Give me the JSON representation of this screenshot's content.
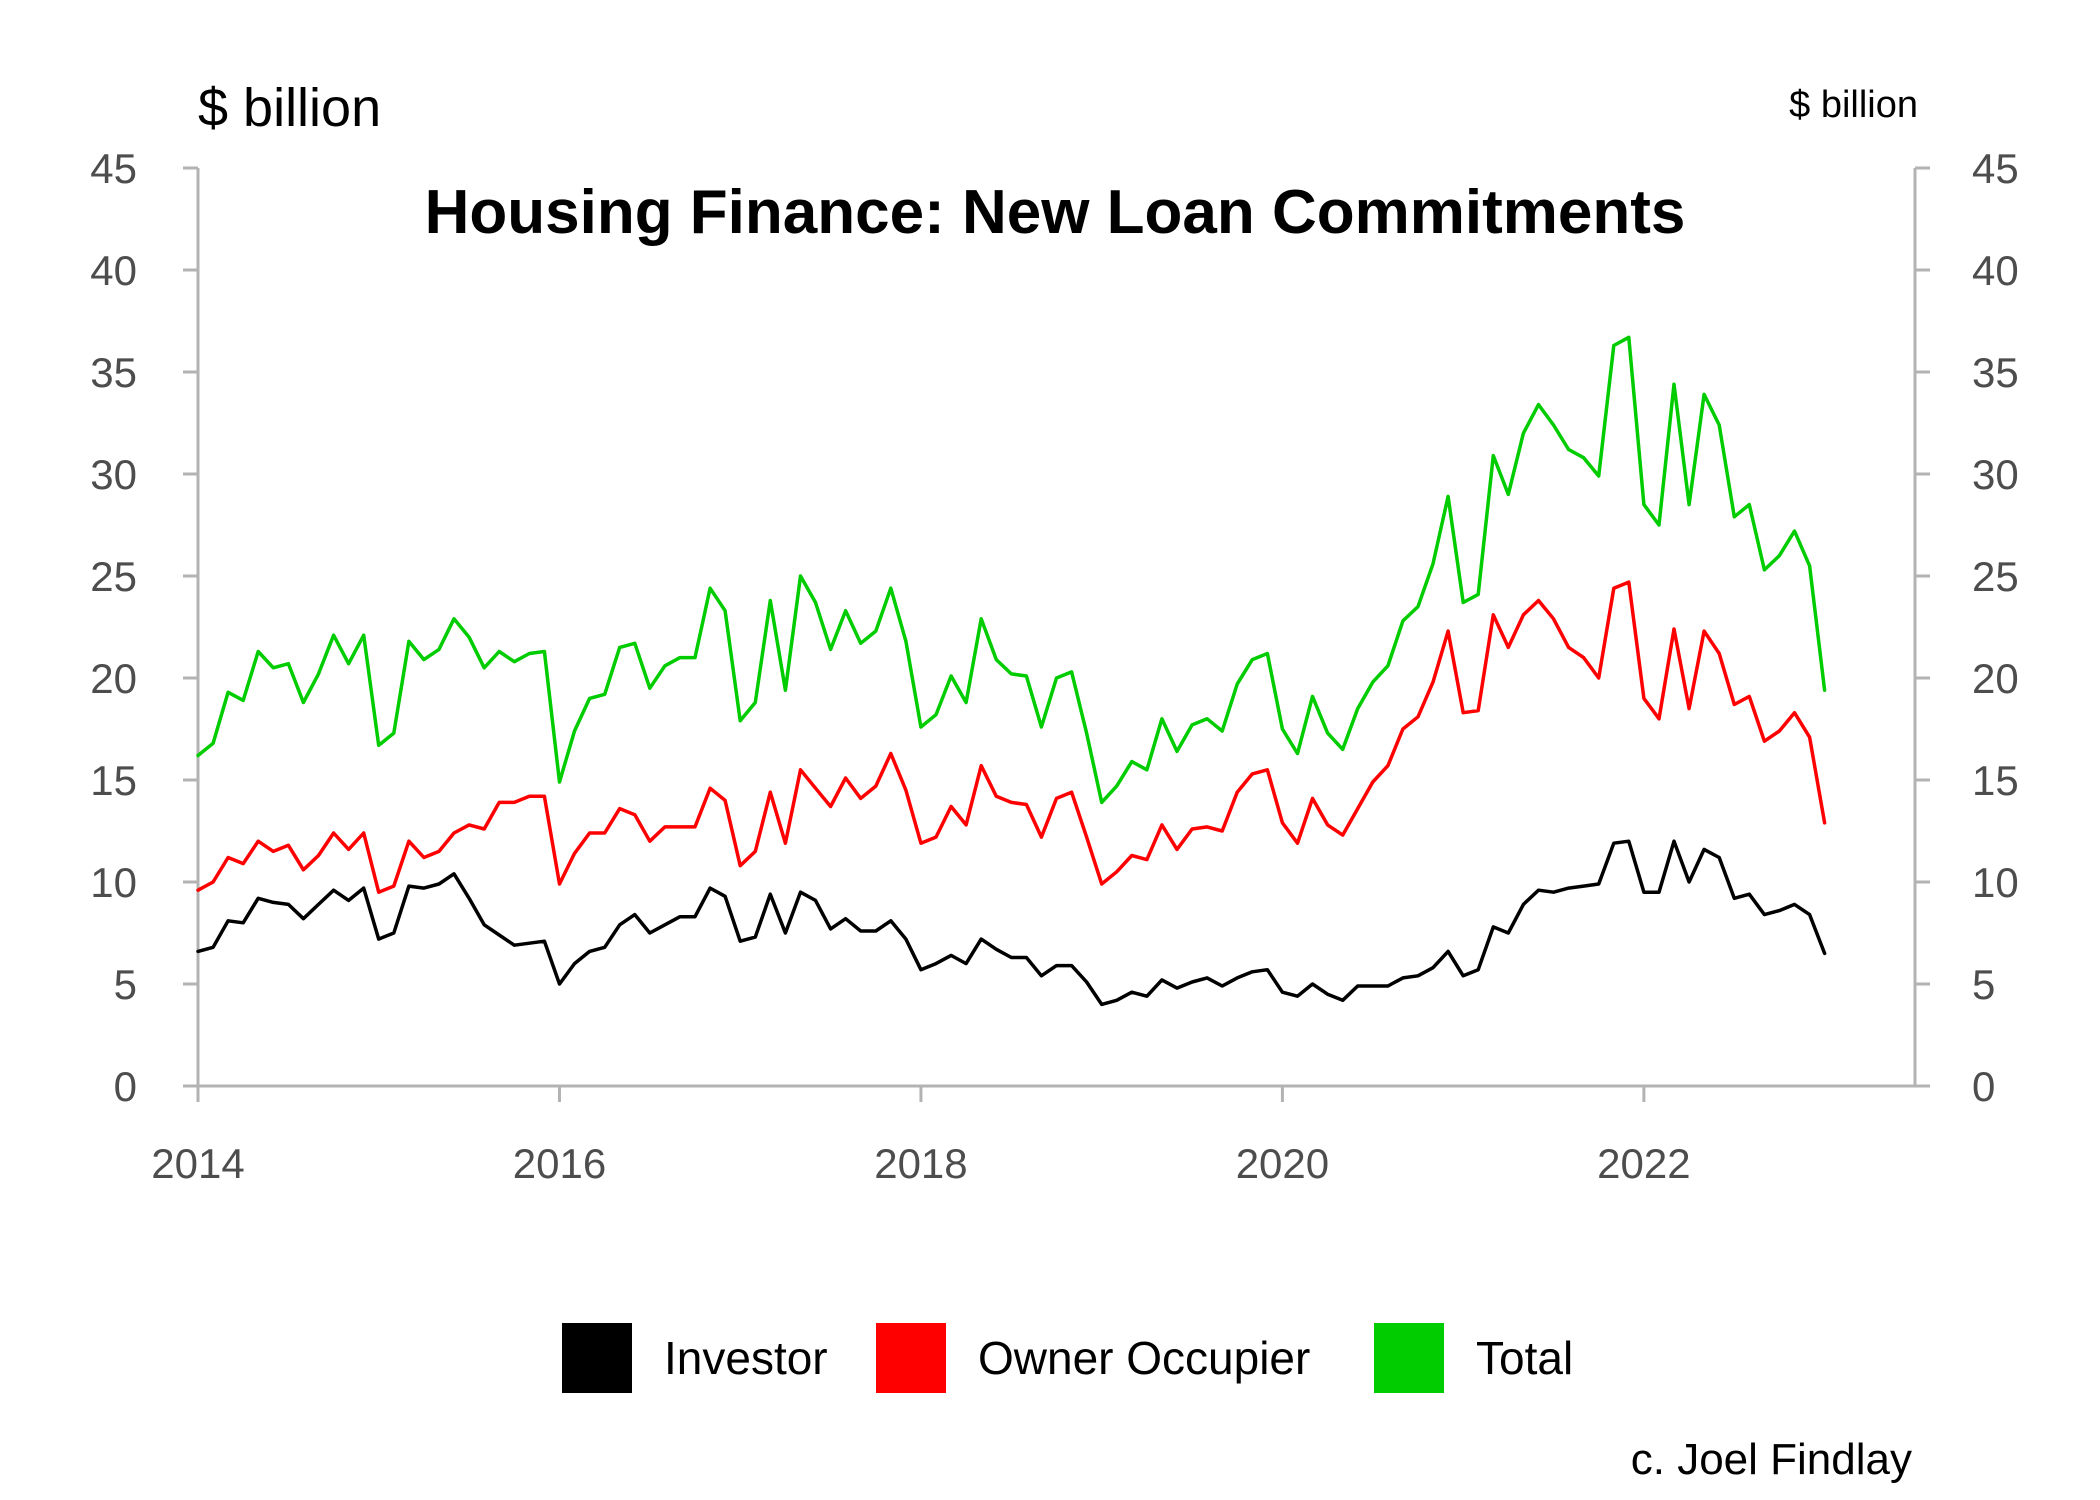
{
  "chart_data": {
    "type": "line",
    "title": "Housing Finance: New Loan Commitments",
    "y_unit_left": "$ billion",
    "y_unit_right": "$ billion",
    "ylim": [
      0,
      45
    ],
    "y_ticks": [
      "0",
      "5",
      "10",
      "15",
      "20",
      "25",
      "30",
      "35",
      "40",
      "45"
    ],
    "xlim": [
      2014.0,
      2023.5
    ],
    "x_ticks": [
      "2014",
      "2016",
      "2018",
      "2020",
      "2022"
    ],
    "x_start": 2014.0,
    "x_step_months": 1,
    "grid": false,
    "legend_position": "bottom-center",
    "credit": "c. Joel Findlay",
    "series": [
      {
        "name": "Investor",
        "color": "#000000",
        "values": [
          6.6,
          6.8,
          8.1,
          8.0,
          9.2,
          9.0,
          8.9,
          8.2,
          8.9,
          9.6,
          9.1,
          9.7,
          7.2,
          7.5,
          9.8,
          9.7,
          9.9,
          10.4,
          9.2,
          7.9,
          7.4,
          6.9,
          7.0,
          7.1,
          5.0,
          6.0,
          6.6,
          6.8,
          7.9,
          8.4,
          7.5,
          7.9,
          8.3,
          8.3,
          9.7,
          9.3,
          7.1,
          7.3,
          9.4,
          7.5,
          9.5,
          9.1,
          7.7,
          8.2,
          7.6,
          7.6,
          8.1,
          7.2,
          5.7,
          6.0,
          6.4,
          6.0,
          7.2,
          6.7,
          6.3,
          6.3,
          5.4,
          5.9,
          5.9,
          5.1,
          4.0,
          4.2,
          4.6,
          4.4,
          5.2,
          4.8,
          5.1,
          5.3,
          4.9,
          5.3,
          5.6,
          5.7,
          4.6,
          4.4,
          5.0,
          4.5,
          4.2,
          4.9,
          4.9,
          4.9,
          5.3,
          5.4,
          5.8,
          6.6,
          5.4,
          5.7,
          7.8,
          7.5,
          8.9,
          9.6,
          9.5,
          9.7,
          9.8,
          9.9,
          11.9,
          12.0,
          9.5,
          9.5,
          12.0,
          10.0,
          11.6,
          11.2,
          9.2,
          9.4,
          8.4,
          8.6,
          8.9,
          8.4,
          6.5
        ]
      },
      {
        "name": "Owner Occupier",
        "color": "#ff0000",
        "values": [
          9.6,
          10.0,
          11.2,
          10.9,
          12.0,
          11.5,
          11.8,
          10.6,
          11.3,
          12.4,
          11.6,
          12.4,
          9.5,
          9.8,
          12.0,
          11.2,
          11.5,
          12.4,
          12.8,
          12.6,
          13.9,
          13.9,
          14.2,
          14.2,
          9.9,
          11.4,
          12.4,
          12.4,
          13.6,
          13.3,
          12.0,
          12.7,
          12.7,
          12.7,
          14.6,
          14.0,
          10.8,
          11.5,
          14.4,
          11.9,
          15.5,
          14.6,
          13.7,
          15.1,
          14.1,
          14.7,
          16.3,
          14.5,
          11.9,
          12.2,
          13.7,
          12.8,
          15.7,
          14.2,
          13.9,
          13.8,
          12.2,
          14.1,
          14.4,
          12.2,
          9.9,
          10.5,
          11.3,
          11.1,
          12.8,
          11.6,
          12.6,
          12.7,
          12.5,
          14.4,
          15.3,
          15.5,
          12.9,
          11.9,
          14.1,
          12.8,
          12.3,
          13.6,
          14.9,
          15.7,
          17.5,
          18.1,
          19.8,
          22.3,
          18.3,
          18.4,
          23.1,
          21.5,
          23.1,
          23.8,
          22.9,
          21.5,
          21.0,
          20.0,
          24.4,
          24.7,
          19.0,
          18.0,
          22.4,
          18.5,
          22.3,
          21.2,
          18.7,
          19.1,
          16.9,
          17.4,
          18.3,
          17.1,
          12.9
        ]
      },
      {
        "name": "Total",
        "color": "#00cc00",
        "values": [
          16.2,
          16.8,
          19.3,
          18.9,
          21.3,
          20.5,
          20.7,
          18.8,
          20.2,
          22.1,
          20.7,
          22.1,
          16.7,
          17.3,
          21.8,
          20.9,
          21.4,
          22.9,
          22.0,
          20.5,
          21.3,
          20.8,
          21.2,
          21.3,
          14.9,
          17.4,
          19.0,
          19.2,
          21.5,
          21.7,
          19.5,
          20.6,
          21.0,
          21.0,
          24.4,
          23.3,
          17.9,
          18.8,
          23.8,
          19.4,
          25.0,
          23.7,
          21.4,
          23.3,
          21.7,
          22.3,
          24.4,
          21.8,
          17.6,
          18.2,
          20.1,
          18.8,
          22.9,
          20.9,
          20.2,
          20.1,
          17.6,
          20.0,
          20.3,
          17.3,
          13.9,
          14.7,
          15.9,
          15.5,
          18.0,
          16.4,
          17.7,
          18.0,
          17.4,
          19.7,
          20.9,
          21.2,
          17.5,
          16.3,
          19.1,
          17.3,
          16.5,
          18.5,
          19.8,
          20.6,
          22.8,
          23.5,
          25.6,
          28.9,
          23.7,
          24.1,
          30.9,
          29.0,
          32.0,
          33.4,
          32.4,
          31.2,
          30.8,
          29.9,
          36.3,
          36.7,
          28.5,
          27.5,
          34.4,
          28.5,
          33.9,
          32.4,
          27.9,
          28.5,
          25.3,
          26.0,
          27.2,
          25.5,
          19.4
        ]
      }
    ]
  }
}
